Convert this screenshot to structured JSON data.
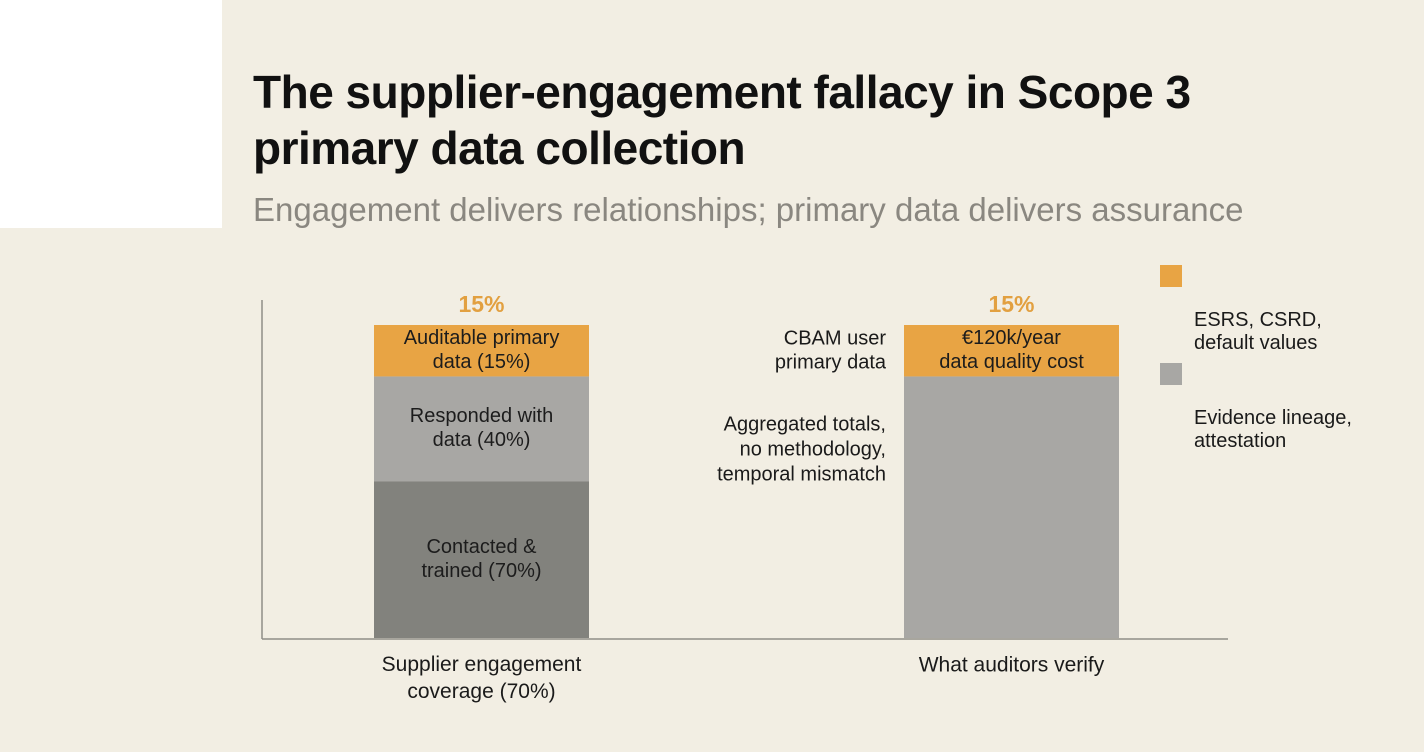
{
  "chart_data": {
    "type": "bar",
    "title": "The supplier-engagement fallacy in Scope 3 primary data collection",
    "subtitle": "Engagement delivers relationships; primary data delivers assurance",
    "categories": [
      "Supplier engagement coverage (70%)",
      "What auditors verify"
    ],
    "ylim": [
      0,
      70
    ],
    "colors": {
      "orange": "#e8a444",
      "light_gray": "#a8a7a4",
      "dark_gray": "#82827d",
      "axis": "#8f8d88",
      "top_label": "#e2a040"
    },
    "bars": [
      {
        "category": "Supplier engagement coverage (70%)",
        "total": 70,
        "top_label": "15%",
        "segments": [
          {
            "label": "Contacted & trained (70%)",
            "value": 35,
            "color": "#82827d"
          },
          {
            "label": "Responded with data (40%)",
            "value": 23.5,
            "color": "#a8a7a4"
          },
          {
            "label": "Auditable primary data (15%)",
            "value": 11.5,
            "color": "#e8a444"
          }
        ]
      },
      {
        "category": "What auditors verify",
        "total": 70,
        "top_label": "15%",
        "segments": [
          {
            "label": "",
            "value": 58.5,
            "color": "#a8a7a4"
          },
          {
            "label": "€120k/year data quality cost",
            "value": 11.5,
            "color": "#e8a444"
          }
        ]
      }
    ],
    "annotations": [
      {
        "text": "CBAM user primary data"
      },
      {
        "text": "Aggregated totals, no methodology, temporal mismatch"
      }
    ],
    "legend": [
      {
        "name": "ESRS, CSRD, default values",
        "color": "#e8a444"
      },
      {
        "name": "Evidence lineage, attestation",
        "color": "#a8a7a4"
      }
    ],
    "grid": false,
    "legend_position": "top-right"
  },
  "display": {
    "bar1_lines": {
      "cat": [
        "Supplier engagement",
        "coverage (70%)"
      ],
      "seg": [
        [
          "Contacted &",
          "trained (70%)"
        ],
        [
          "Responded with",
          "data (40%)"
        ],
        [
          "Auditable primary",
          "data (15%)"
        ]
      ]
    },
    "bar2_lines": {
      "cat": [
        "What auditors verify"
      ],
      "seg": [
        [],
        [
          "€120k/year",
          "data quality cost"
        ]
      ]
    },
    "annotation_lines": [
      [
        "CBAM user",
        "primary data"
      ],
      [
        "Aggregated totals,",
        "no methodology,",
        "temporal mismatch"
      ]
    ],
    "legend_lines": [
      "ESRS, CSRD,\ndefault values",
      "Evidence lineage,\nattestation"
    ]
  }
}
